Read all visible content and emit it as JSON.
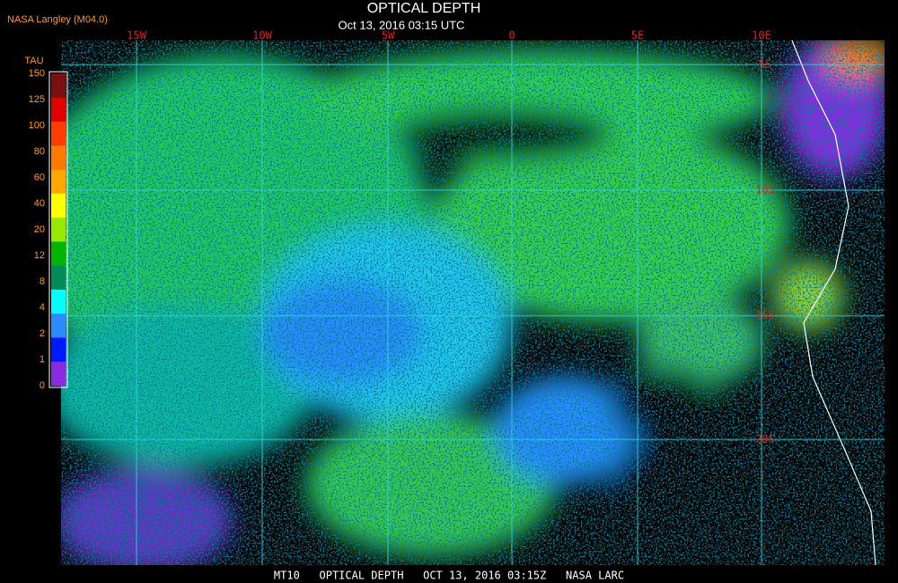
{
  "header": {
    "credit": "NASA Langley (M04.0)",
    "title": "OPTICAL DEPTH",
    "subtitle": "Oct 13, 2016 03:15 UTC"
  },
  "legend": {
    "title": "TAU",
    "labels": [
      "150",
      "125",
      "100",
      "80",
      "60",
      "40",
      "20",
      "12",
      "8",
      "4",
      "2",
      "1",
      "0"
    ],
    "colors": [
      "#7a1010",
      "#e00000",
      "#ff3c00",
      "#ff7800",
      "#ffa800",
      "#ffff00",
      "#98e800",
      "#00b400",
      "#008c5a",
      "#00ffff",
      "#2a8cff",
      "#0018ff",
      "#8a2be2"
    ]
  },
  "map": {
    "longitude_labels": [
      "15W",
      "10W",
      "5W",
      "0",
      "5E",
      "10E"
    ],
    "latitude_labels": [
      "5S",
      "10S",
      "15S",
      "20S"
    ]
  },
  "footer": {
    "text": "MT10   OPTICAL DEPTH   OCT 13, 2016 03:15Z   NASA LARC"
  }
}
